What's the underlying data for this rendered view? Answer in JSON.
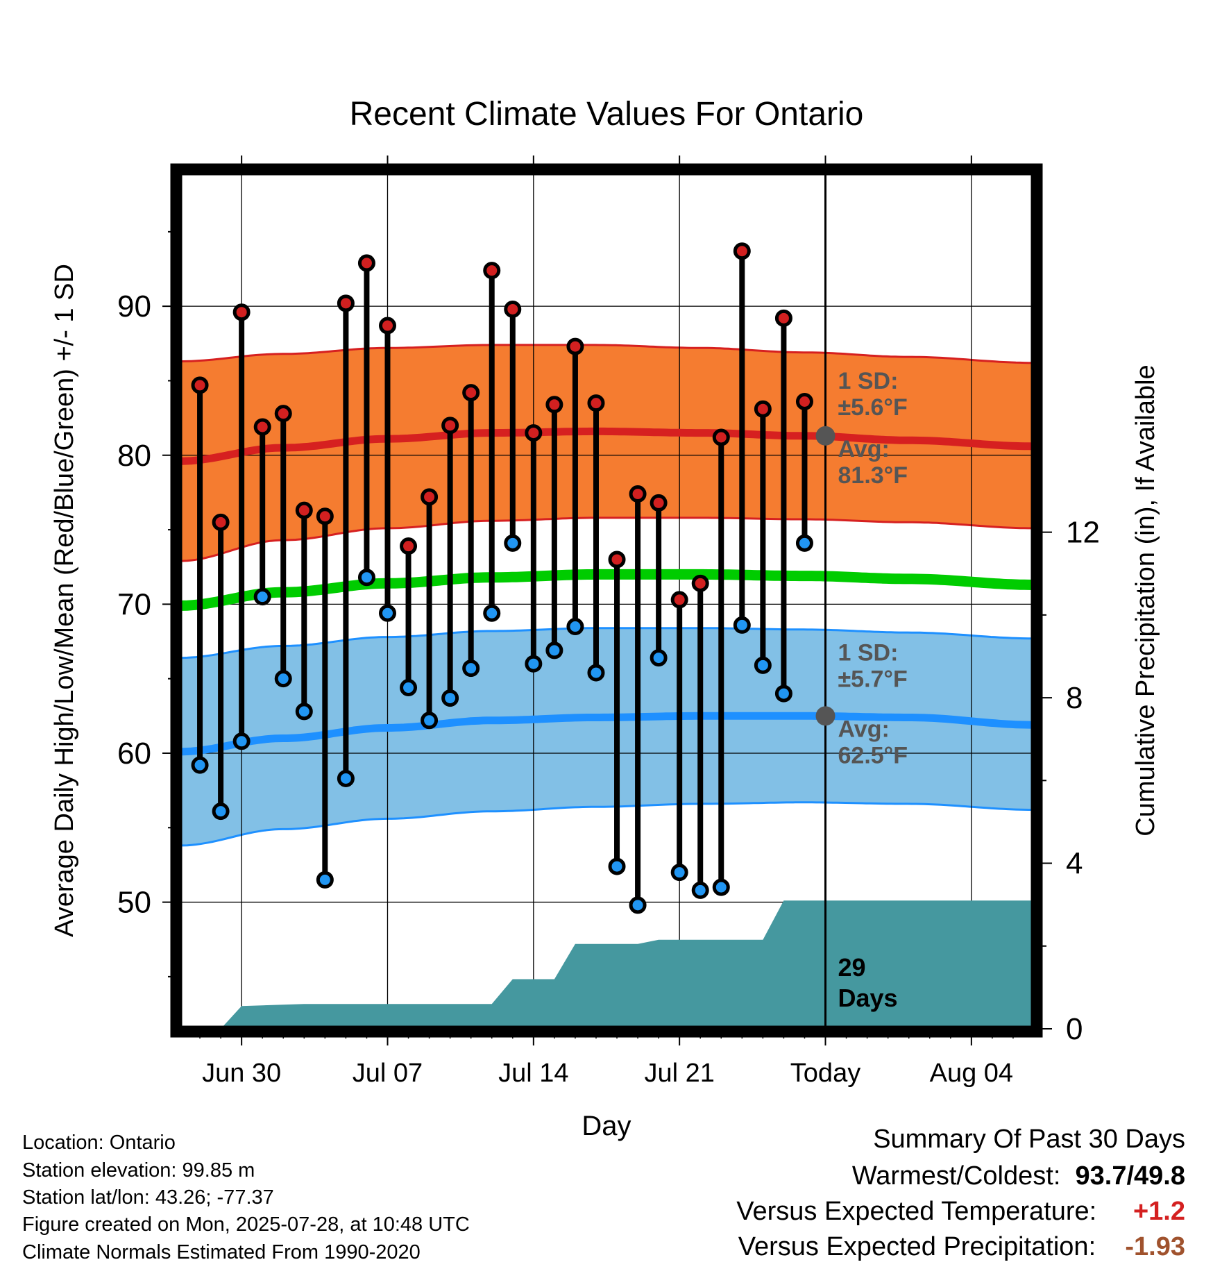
{
  "title": "Recent Climate Values For Ontario",
  "colors": {
    "high_band": "#F57C30",
    "high_band_edge": "#D62020",
    "high_mean": "#D62020",
    "low_band": "#82C0E6",
    "low_band_edge": "#1E90FF",
    "low_mean": "#1E90FF",
    "mean_line": "#00CC00",
    "precip": "#45989F",
    "high_marker": "#D22020",
    "low_marker": "#2196F3",
    "today_marker": "#555555",
    "annot_text": "#555555",
    "temp_anomaly": "#D42020",
    "precip_anomaly": "#A0522D"
  },
  "chart_data": {
    "type": "line",
    "title": "Recent Climate Values For Ontario",
    "xlabel": "Day",
    "ylabel": "Average Daily High/Low/Mean (Red/Blue/Green) +/- 1 SD",
    "y2label": "Cumulative Precipitation (in), If Available",
    "xlim": [
      "2025-06-27",
      "2025-08-07"
    ],
    "ylim": [
      41.5,
      99
    ],
    "y2lim": [
      0,
      20.7
    ],
    "x_ticks": [
      {
        "date": "2025-06-30",
        "label": "Jun 30"
      },
      {
        "date": "2025-07-07",
        "label": "Jul 07"
      },
      {
        "date": "2025-07-14",
        "label": "Jul 14"
      },
      {
        "date": "2025-07-21",
        "label": "Jul 21"
      },
      {
        "date": "2025-07-28",
        "label": "Today"
      },
      {
        "date": "2025-08-04",
        "label": "Aug 04"
      }
    ],
    "y_ticks": [
      50,
      60,
      70,
      80,
      90
    ],
    "y2_ticks": [
      0,
      4,
      8,
      12
    ],
    "today": "2025-07-28",
    "normals": {
      "dates": [
        "2025-06-27",
        "2025-07-02",
        "2025-07-07",
        "2025-07-12",
        "2025-07-17",
        "2025-07-22",
        "2025-07-27",
        "2025-08-01",
        "2025-08-07"
      ],
      "high_mean": [
        79.6,
        80.5,
        81.1,
        81.5,
        81.6,
        81.5,
        81.3,
        81.0,
        80.6
      ],
      "high_upper": [
        86.3,
        86.8,
        87.2,
        87.4,
        87.4,
        87.2,
        86.9,
        86.6,
        86.2
      ],
      "high_lower": [
        72.9,
        74.3,
        75.1,
        75.6,
        75.8,
        75.8,
        75.7,
        75.5,
        75.1
      ],
      "low_mean": [
        60.1,
        61.0,
        61.7,
        62.2,
        62.4,
        62.5,
        62.5,
        62.4,
        61.9
      ],
      "low_upper": [
        66.4,
        67.2,
        67.8,
        68.2,
        68.4,
        68.4,
        68.3,
        68.1,
        67.7
      ],
      "low_lower": [
        53.8,
        54.9,
        55.6,
        56.1,
        56.4,
        56.6,
        56.7,
        56.6,
        56.2
      ],
      "mean": [
        69.9,
        70.8,
        71.4,
        71.8,
        72.0,
        72.0,
        71.9,
        71.7,
        71.3
      ]
    },
    "series": [
      {
        "name": "High",
        "x": [
          "2025-06-28",
          "2025-06-29",
          "2025-06-30",
          "2025-07-01",
          "2025-07-02",
          "2025-07-03",
          "2025-07-04",
          "2025-07-05",
          "2025-07-06",
          "2025-07-07",
          "2025-07-08",
          "2025-07-09",
          "2025-07-10",
          "2025-07-11",
          "2025-07-12",
          "2025-07-13",
          "2025-07-14",
          "2025-07-15",
          "2025-07-16",
          "2025-07-17",
          "2025-07-18",
          "2025-07-19",
          "2025-07-20",
          "2025-07-21",
          "2025-07-22",
          "2025-07-23",
          "2025-07-24",
          "2025-07-25",
          "2025-07-26",
          "2025-07-27"
        ],
        "values": [
          84.7,
          75.5,
          89.6,
          81.9,
          82.8,
          76.3,
          75.9,
          90.2,
          92.9,
          88.7,
          73.9,
          77.2,
          82.0,
          84.2,
          92.4,
          89.8,
          81.5,
          83.4,
          87.3,
          83.5,
          73.0,
          77.4,
          76.8,
          70.3,
          71.4,
          81.2,
          93.7,
          83.1,
          89.2,
          83.6
        ]
      },
      {
        "name": "Low",
        "x": [
          "2025-06-28",
          "2025-06-29",
          "2025-06-30",
          "2025-07-01",
          "2025-07-02",
          "2025-07-03",
          "2025-07-04",
          "2025-07-05",
          "2025-07-06",
          "2025-07-07",
          "2025-07-08",
          "2025-07-09",
          "2025-07-10",
          "2025-07-11",
          "2025-07-12",
          "2025-07-13",
          "2025-07-14",
          "2025-07-15",
          "2025-07-16",
          "2025-07-17",
          "2025-07-18",
          "2025-07-19",
          "2025-07-20",
          "2025-07-21",
          "2025-07-22",
          "2025-07-23",
          "2025-07-24",
          "2025-07-25",
          "2025-07-26",
          "2025-07-27"
        ],
        "values": [
          59.2,
          56.1,
          60.8,
          70.5,
          65.0,
          62.8,
          51.5,
          58.3,
          71.8,
          69.4,
          64.4,
          62.2,
          63.7,
          65.7,
          69.4,
          74.1,
          66.0,
          66.9,
          68.5,
          65.4,
          52.4,
          49.8,
          66.4,
          52.0,
          50.8,
          51.0,
          68.6,
          65.9,
          64.0,
          74.1
        ]
      }
    ],
    "precip": {
      "dates": [
        "2025-06-29",
        "2025-06-30",
        "2025-07-03",
        "2025-07-11",
        "2025-07-12",
        "2025-07-13",
        "2025-07-14",
        "2025-07-15",
        "2025-07-16",
        "2025-07-19",
        "2025-07-20",
        "2025-07-24",
        "2025-07-25",
        "2025-07-26",
        "2025-08-07"
      ],
      "values": [
        0.0,
        0.55,
        0.6,
        0.6,
        0.6,
        1.2,
        1.2,
        1.2,
        2.05,
        2.05,
        2.15,
        2.15,
        2.15,
        3.1,
        3.1
      ]
    },
    "annotations": {
      "high_sd_label": "1 SD:",
      "high_sd_value": "±5.6°F",
      "high_avg_label": "Avg:",
      "high_avg_value": "81.3°F",
      "high_avg": 81.3,
      "low_sd_label": "1 SD:",
      "low_sd_value": "±5.7°F",
      "low_avg_label": "Avg:",
      "low_avg_value": "62.5°F",
      "low_avg": 62.5,
      "days_number": "29",
      "days_word": "Days"
    }
  },
  "footer": {
    "location": "Location: Ontario",
    "elevation": "Station elevation: 99.85 m",
    "latlon": "Station lat/lon: 43.26; -77.37",
    "created": "Figure created on Mon, 2025-07-28, at 10:48 UTC",
    "normals": "Climate Normals Estimated From 1990-2020"
  },
  "summary": {
    "title": "Summary Of Past 30 Days",
    "warm_cold_label": "Warmest/Coldest:",
    "warm_cold_value": "93.7/49.8",
    "temp_label": "Versus Expected Temperature:",
    "temp_value": "+1.2",
    "precip_label": "Versus Expected Precipitation:",
    "precip_value": "-1.93"
  }
}
